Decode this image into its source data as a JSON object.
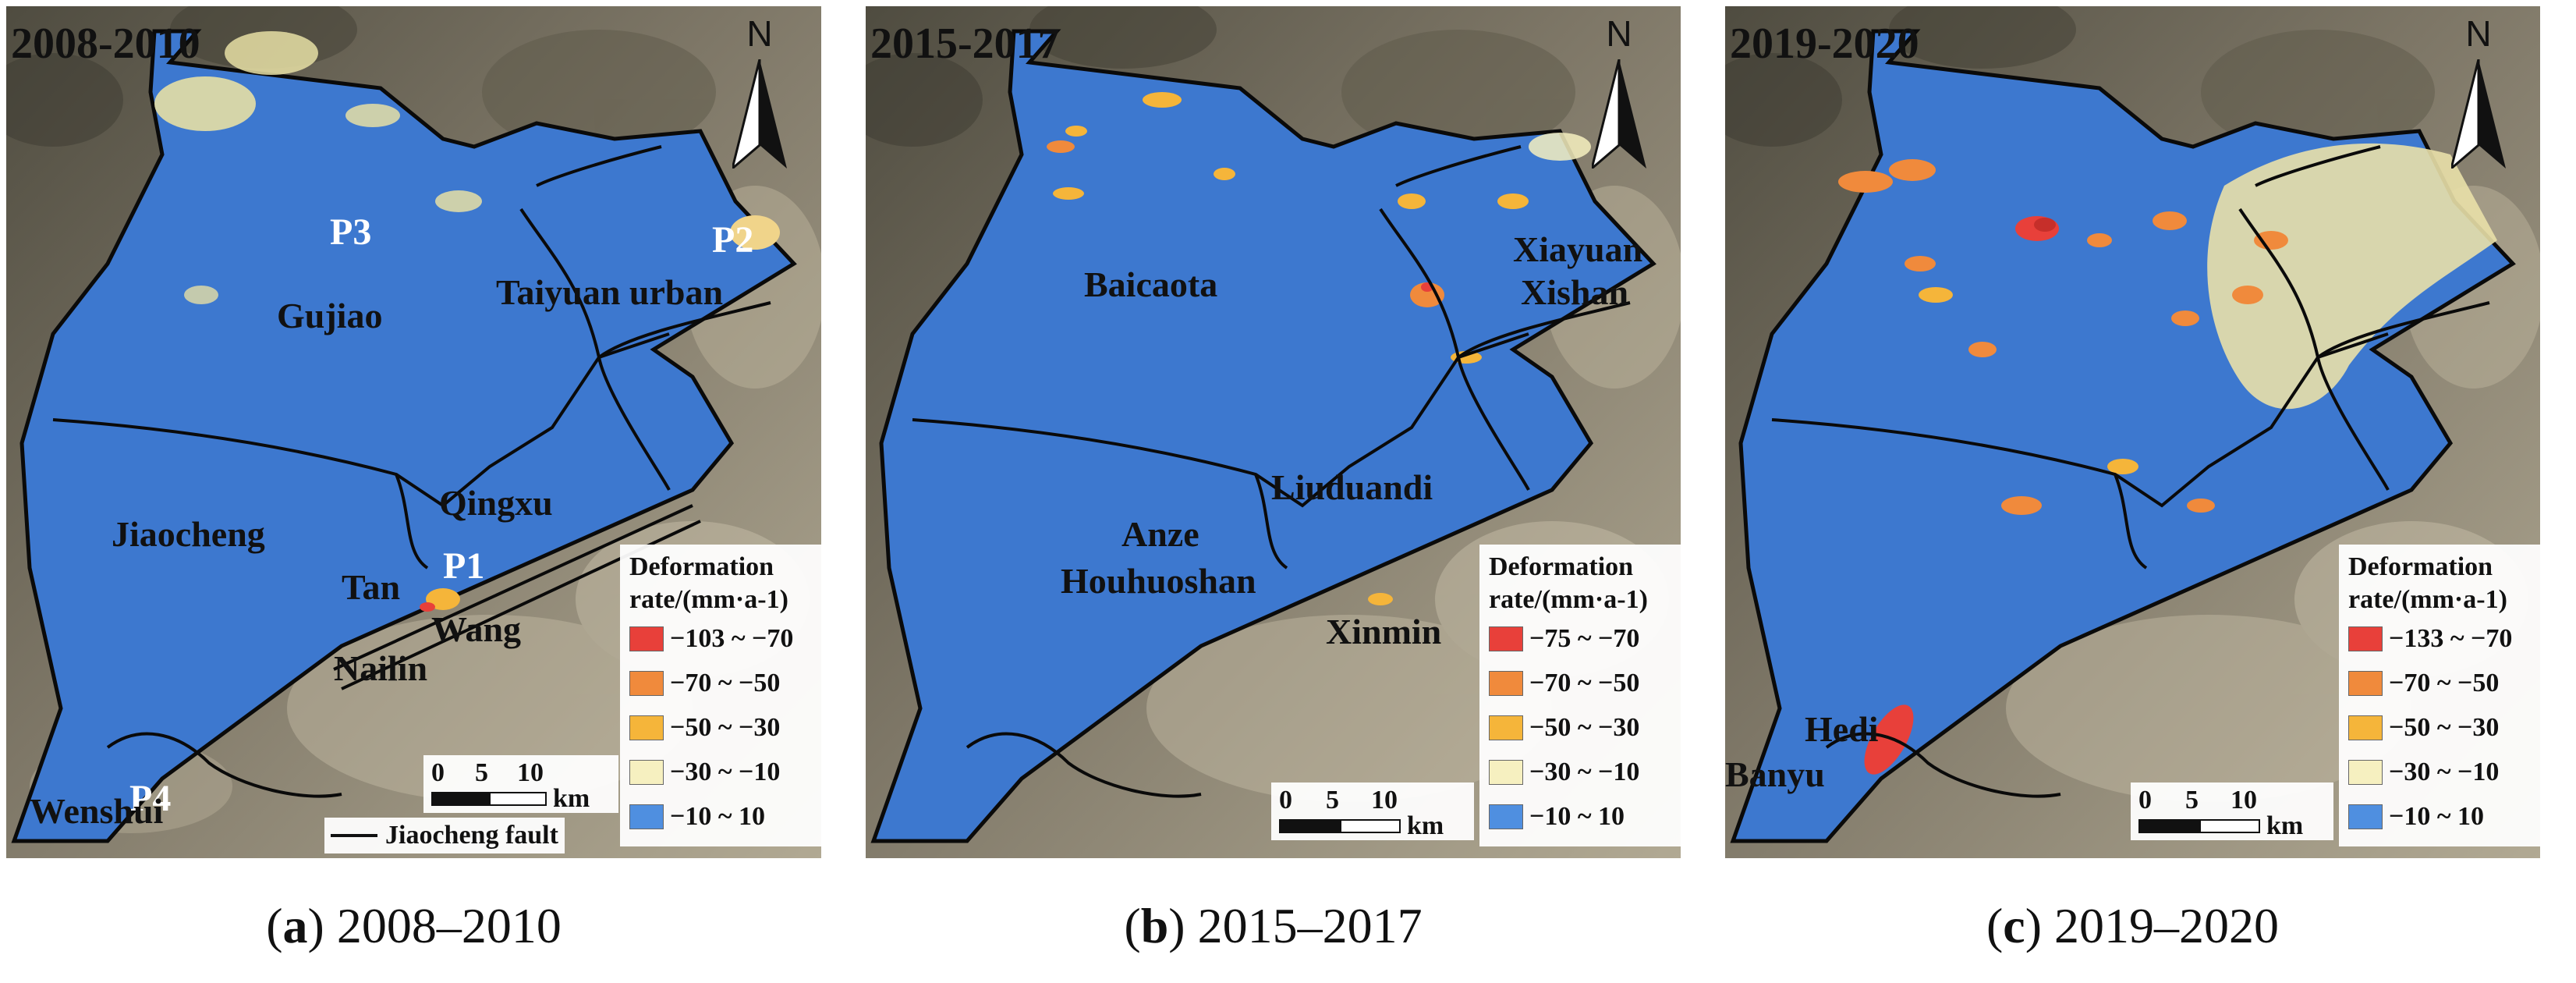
{
  "figure": {
    "panels": [
      {
        "id": "a",
        "period": "2008-2010",
        "north": "N",
        "caption_letter": "a",
        "caption_text": "2008–2010",
        "labels": {
          "P3": "P3",
          "P2": "P2",
          "P1": "P1",
          "P4": "P4",
          "gujiao": "Gujiao",
          "taiyuan": "Taiyuan urban",
          "jiaocheng": "Jiaocheng",
          "qingxu": "Qingxu",
          "tan": "Tan",
          "wang": "Wang",
          "nailin": "Nailin",
          "wenshui": "Wenshui"
        },
        "legend": {
          "title": "Deformation rate/(mm·a-1)",
          "title_line1": "Deformation",
          "title_line2": "rate/(mm·a-1)",
          "classes": [
            "−103 ~ −70",
            "−70 ~ −50",
            "−50 ~ −30",
            "−30 ~ −10",
            "−10 ~ 10"
          ]
        },
        "scale": {
          "ticks": [
            "0",
            "5",
            "10"
          ],
          "unit": "km"
        },
        "fault_label": "Jiaocheng fault"
      },
      {
        "id": "b",
        "period": "2015-2017",
        "north": "N",
        "caption_letter": "b",
        "caption_text": "2015–2017",
        "labels": {
          "baicaota": "Baicaota",
          "xiayuan": "Xiayuan",
          "xishan": "Xishan",
          "liuduandi": "Liuduandi",
          "anze": "Anze",
          "houhuoshan": "Houhuoshan",
          "xinmin": "Xinmin"
        },
        "legend": {
          "title_line1": "Deformation",
          "title_line2": "rate/(mm·a-1)",
          "classes": [
            "−75 ~ −70",
            "−70 ~ −50",
            "−50 ~ −30",
            "−30 ~ −10",
            "−10 ~ 10"
          ]
        },
        "scale": {
          "ticks": [
            "0",
            "5",
            "10"
          ],
          "unit": "km"
        }
      },
      {
        "id": "c",
        "period": "2019-2020",
        "north": "N",
        "caption_letter": "c",
        "caption_text": "2019–2020",
        "labels": {
          "hedi": "Hedi",
          "banyu": "Banyu"
        },
        "legend": {
          "title_line1": "Deformation",
          "title_line2": "rate/(mm·a-1)",
          "classes": [
            "−133 ~ −70",
            "−70 ~ −50",
            "−50 ~ −30",
            "−30 ~ −10",
            "−10 ~ 10"
          ]
        },
        "scale": {
          "ticks": [
            "0",
            "5",
            "10"
          ],
          "unit": "km"
        }
      }
    ]
  },
  "colors": {
    "class_colors": [
      "#e8403a",
      "#f08a3c",
      "#f5b53a",
      "#f6f0c0",
      "#4f8fe0"
    ],
    "basin_blue": "#3d78cf",
    "boundary": "#0a0a0a",
    "terrain_dark": "#5d5a4c",
    "terrain_light": "#a49c86"
  }
}
